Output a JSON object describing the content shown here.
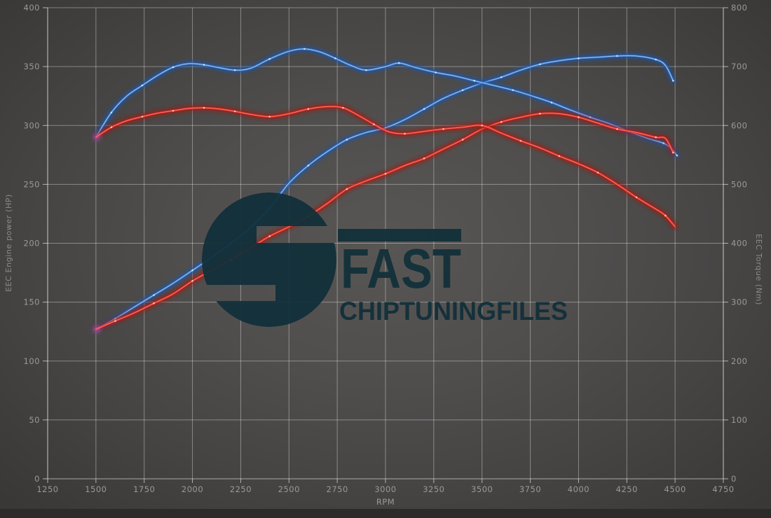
{
  "watermark": {
    "brand_top": "FAST",
    "brand_bottom": "CHIPTUNINGFILES",
    "logo_color": "#12303a"
  },
  "chart_data": {
    "type": "line",
    "title": "",
    "xlabel": "RPM",
    "ylabel_left": "EEC Engine power (HP)",
    "ylabel_right": "EEC Torque (Nm)",
    "x_ticks": [
      1250,
      1500,
      1750,
      2000,
      2250,
      2500,
      2750,
      3000,
      3250,
      3500,
      3750,
      4000,
      4250,
      4500,
      4750
    ],
    "y_left": {
      "min": 0,
      "max": 400,
      "step": 50
    },
    "y_right": {
      "min": 0,
      "max": 800,
      "step": 100
    },
    "grid": true,
    "legend": "none",
    "series": [
      {
        "name": "engine-power-tuned",
        "axis": "left",
        "unit": "HP",
        "color": "#3f7fd2",
        "glow": "#1e55ac",
        "core": "#9cc6f4",
        "dot": "#ddebff",
        "points": [
          [
            1500,
            127
          ],
          [
            1600,
            136
          ],
          [
            1700,
            146
          ],
          [
            1800,
            156
          ],
          [
            1900,
            166
          ],
          [
            2000,
            177
          ],
          [
            2100,
            188
          ],
          [
            2200,
            200
          ],
          [
            2300,
            213
          ],
          [
            2400,
            230
          ],
          [
            2500,
            251
          ],
          [
            2600,
            266
          ],
          [
            2700,
            278
          ],
          [
            2800,
            288
          ],
          [
            2900,
            294
          ],
          [
            3000,
            298
          ],
          [
            3100,
            305
          ],
          [
            3200,
            314
          ],
          [
            3300,
            323
          ],
          [
            3400,
            330
          ],
          [
            3500,
            336
          ],
          [
            3600,
            341
          ],
          [
            3700,
            347
          ],
          [
            3800,
            352
          ],
          [
            3900,
            355
          ],
          [
            4000,
            357
          ],
          [
            4100,
            358
          ],
          [
            4200,
            359
          ],
          [
            4300,
            359
          ],
          [
            4400,
            356
          ],
          [
            4450,
            351
          ],
          [
            4490,
            338
          ]
        ]
      },
      {
        "name": "engine-power-original",
        "axis": "left",
        "unit": "HP",
        "color": "#df3328",
        "glow": "#a81410",
        "core": "#ff7668",
        "dot": "#ffd2c8",
        "points": [
          [
            1500,
            127
          ],
          [
            1600,
            134
          ],
          [
            1700,
            141
          ],
          [
            1800,
            149
          ],
          [
            1900,
            157
          ],
          [
            2000,
            168
          ],
          [
            2100,
            177
          ],
          [
            2200,
            186
          ],
          [
            2300,
            196
          ],
          [
            2400,
            206
          ],
          [
            2500,
            214
          ],
          [
            2600,
            223
          ],
          [
            2700,
            234
          ],
          [
            2800,
            246
          ],
          [
            2900,
            253
          ],
          [
            3000,
            259
          ],
          [
            3100,
            266
          ],
          [
            3200,
            272
          ],
          [
            3300,
            280
          ],
          [
            3400,
            288
          ],
          [
            3500,
            297
          ],
          [
            3600,
            303
          ],
          [
            3700,
            307
          ],
          [
            3800,
            310
          ],
          [
            3900,
            310
          ],
          [
            4000,
            307
          ],
          [
            4100,
            302
          ],
          [
            4200,
            297
          ],
          [
            4300,
            294
          ],
          [
            4400,
            290
          ],
          [
            4450,
            289
          ],
          [
            4490,
            277
          ]
        ]
      },
      {
        "name": "torque-tuned",
        "axis": "right",
        "unit": "Nm",
        "color": "#3f7fd2",
        "glow": "#1e55ac",
        "core": "#9cc6f4",
        "dot": "#ddebff",
        "points": [
          [
            1500,
            580
          ],
          [
            1580,
            622
          ],
          [
            1660,
            650
          ],
          [
            1740,
            668
          ],
          [
            1820,
            685
          ],
          [
            1900,
            699
          ],
          [
            1980,
            705
          ],
          [
            2060,
            703
          ],
          [
            2140,
            698
          ],
          [
            2220,
            694
          ],
          [
            2300,
            697
          ],
          [
            2400,
            713
          ],
          [
            2500,
            726
          ],
          [
            2580,
            730
          ],
          [
            2660,
            725
          ],
          [
            2740,
            714
          ],
          [
            2820,
            702
          ],
          [
            2900,
            694
          ],
          [
            3000,
            700
          ],
          [
            3070,
            706
          ],
          [
            3160,
            698
          ],
          [
            3260,
            690
          ],
          [
            3360,
            684
          ],
          [
            3460,
            676
          ],
          [
            3560,
            668
          ],
          [
            3660,
            660
          ],
          [
            3760,
            650
          ],
          [
            3860,
            639
          ],
          [
            3960,
            626
          ],
          [
            4060,
            614
          ],
          [
            4160,
            603
          ],
          [
            4260,
            590
          ],
          [
            4360,
            578
          ],
          [
            4440,
            570
          ],
          [
            4480,
            561
          ],
          [
            4510,
            549
          ]
        ]
      },
      {
        "name": "torque-original",
        "axis": "right",
        "unit": "Nm",
        "color": "#df3328",
        "glow": "#a81410",
        "core": "#ff7668",
        "dot": "#ffd2c8",
        "points": [
          [
            1500,
            580
          ],
          [
            1580,
            597
          ],
          [
            1660,
            608
          ],
          [
            1740,
            615
          ],
          [
            1820,
            621
          ],
          [
            1900,
            625
          ],
          [
            1980,
            629
          ],
          [
            2060,
            630
          ],
          [
            2140,
            628
          ],
          [
            2220,
            624
          ],
          [
            2300,
            619
          ],
          [
            2400,
            615
          ],
          [
            2500,
            620
          ],
          [
            2600,
            628
          ],
          [
            2700,
            632
          ],
          [
            2780,
            630
          ],
          [
            2860,
            617
          ],
          [
            2940,
            602
          ],
          [
            3020,
            589
          ],
          [
            3100,
            586
          ],
          [
            3200,
            590
          ],
          [
            3300,
            594
          ],
          [
            3400,
            597
          ],
          [
            3500,
            600
          ],
          [
            3600,
            587
          ],
          [
            3700,
            574
          ],
          [
            3800,
            562
          ],
          [
            3900,
            548
          ],
          [
            4000,
            535
          ],
          [
            4100,
            520
          ],
          [
            4200,
            500
          ],
          [
            4300,
            478
          ],
          [
            4400,
            458
          ],
          [
            4450,
            447
          ],
          [
            4500,
            428
          ]
        ]
      }
    ],
    "style": {
      "grid_color": "rgba(255,255,255,0.36)",
      "frame_color": "rgba(255,255,255,0.55)",
      "tick_color": "rgba(255,255,255,0.6)",
      "overlap_glow": "#cf6ee4",
      "bottom_band": "#2c2b2a"
    }
  }
}
